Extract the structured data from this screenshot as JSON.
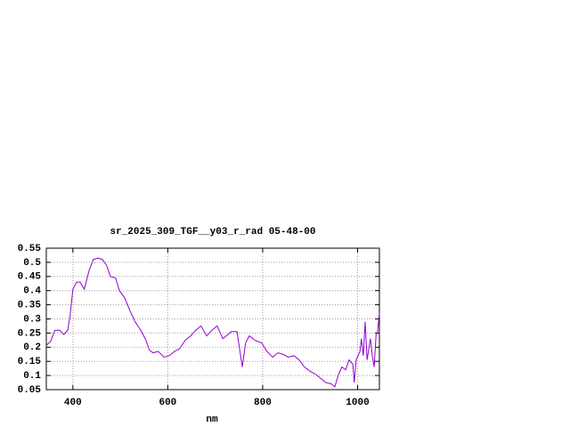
{
  "chart_data": {
    "type": "line",
    "title": "sr_2025_309_TGF__y03_r_rad 05-48-00",
    "x_label": "nm",
    "x": [
      344,
      353,
      362,
      372,
      381,
      389,
      394,
      400,
      408,
      415,
      424,
      434,
      443,
      453,
      462,
      471,
      479,
      490,
      498,
      509,
      520,
      531,
      543,
      554,
      561,
      569,
      580,
      592,
      603,
      614,
      625,
      637,
      648,
      659,
      670,
      682,
      693,
      704,
      716,
      727,
      734,
      746,
      753,
      757,
      764,
      772,
      783,
      798,
      809,
      821,
      832,
      843,
      854,
      866,
      877,
      888,
      900,
      911,
      922,
      933,
      945,
      952,
      960,
      967,
      975,
      982,
      990,
      993,
      997,
      1005,
      1008,
      1012,
      1016,
      1020,
      1027,
      1031,
      1035,
      1039,
      1042,
      1046
    ],
    "series": [
      {
        "name": "sr_2025_309_TGF__y03_r_rad",
        "color": "#9400d3",
        "values": [
          0.207,
          0.22,
          0.26,
          0.26,
          0.245,
          0.26,
          0.31,
          0.405,
          0.43,
          0.43,
          0.405,
          0.47,
          0.51,
          0.515,
          0.51,
          0.49,
          0.45,
          0.445,
          0.4,
          0.375,
          0.33,
          0.29,
          0.26,
          0.225,
          0.19,
          0.18,
          0.185,
          0.165,
          0.17,
          0.185,
          0.195,
          0.225,
          0.24,
          0.26,
          0.275,
          0.24,
          0.26,
          0.275,
          0.23,
          0.245,
          0.255,
          0.255,
          0.175,
          0.13,
          0.215,
          0.24,
          0.225,
          0.215,
          0.185,
          0.165,
          0.18,
          0.175,
          0.165,
          0.17,
          0.155,
          0.13,
          0.115,
          0.105,
          0.09,
          0.075,
          0.07,
          0.06,
          0.105,
          0.13,
          0.12,
          0.155,
          0.14,
          0.075,
          0.155,
          0.185,
          0.23,
          0.17,
          0.29,
          0.155,
          0.23,
          0.17,
          0.13,
          0.245,
          0.255,
          0.32
        ]
      }
    ],
    "xlim": [
      344,
      1046
    ],
    "ylim": [
      0.05,
      0.55
    ],
    "xticks": [
      400,
      600,
      800,
      1000
    ],
    "yticks": [
      0.05,
      0.1,
      0.15,
      0.2,
      0.25,
      0.3,
      0.35,
      0.4,
      0.45,
      0.5,
      0.55
    ],
    "grid": true
  }
}
